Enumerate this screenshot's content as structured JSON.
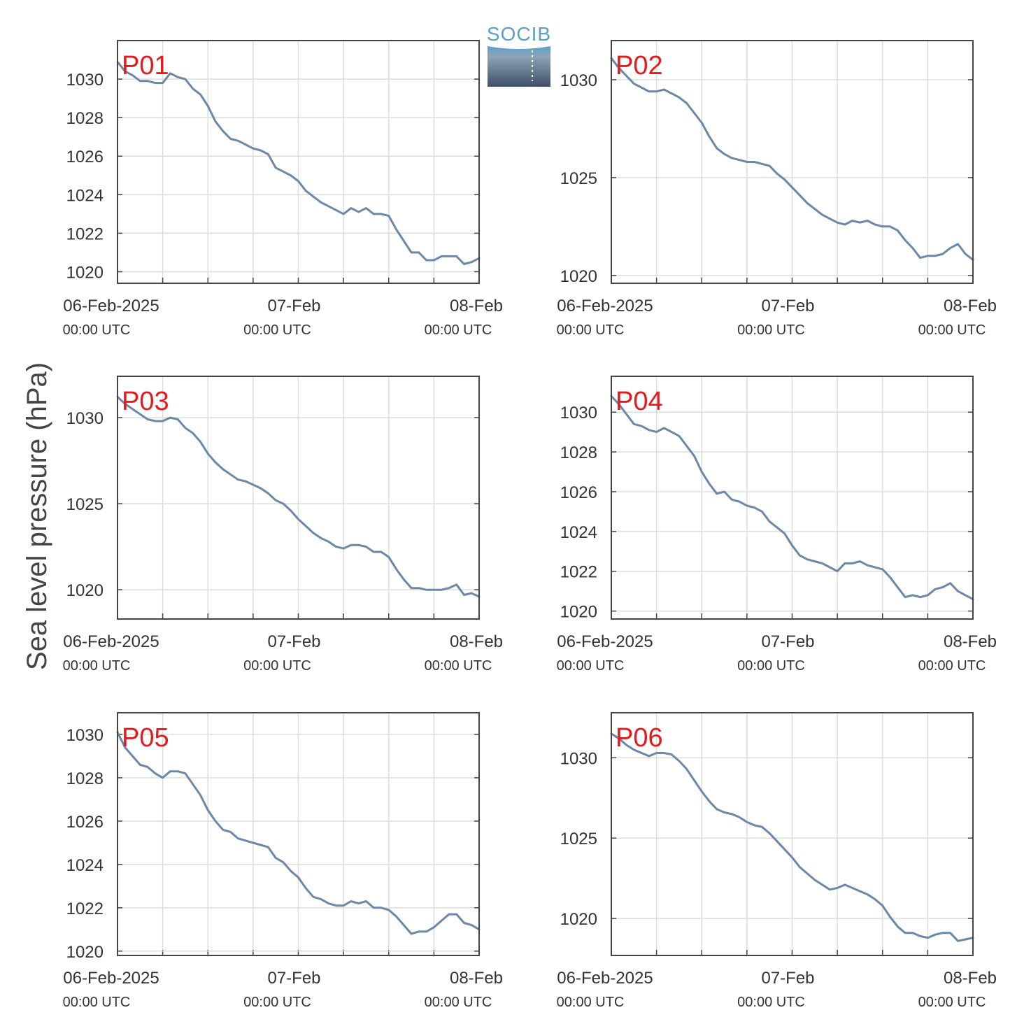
{
  "figure": {
    "ylabel": "Sea level pressure (hPa)",
    "logo_text": "SOCIB",
    "colors": {
      "line": "#6a88a8",
      "label": "#e41a1c",
      "grid": "#dddddd",
      "axis": "#444444"
    }
  },
  "chart_data": [
    {
      "type": "line",
      "title": "P01",
      "x_ticks": [
        "06-Feb-2025",
        "07-Feb",
        "08-Feb"
      ],
      "x_tick_sub": [
        "00:00 UTC",
        "00:00 UTC",
        "00:00 UTC"
      ],
      "x_hours": [
        0,
        24,
        48
      ],
      "xlim": [
        0,
        48
      ],
      "ylim": [
        1019.4,
        1032.0
      ],
      "y_ticks": [
        1020,
        1022,
        1024,
        1026,
        1028,
        1030
      ],
      "grid": true,
      "x": [
        0,
        1,
        2,
        3,
        4,
        5,
        6,
        7,
        8,
        9,
        10,
        11,
        12,
        13,
        14,
        15,
        16,
        17,
        18,
        19,
        20,
        21,
        22,
        23,
        24,
        25,
        26,
        27,
        28,
        29,
        30,
        31,
        32,
        33,
        34,
        35,
        36,
        37,
        38,
        39,
        40,
        41,
        42,
        43,
        44,
        45,
        46,
        47,
        48
      ],
      "y": [
        1030.9,
        1030.4,
        1030.2,
        1029.9,
        1029.9,
        1029.8,
        1029.8,
        1030.3,
        1030.1,
        1030.0,
        1029.5,
        1029.2,
        1028.6,
        1027.8,
        1027.3,
        1026.9,
        1026.8,
        1026.6,
        1026.4,
        1026.3,
        1026.1,
        1025.4,
        1025.2,
        1025.0,
        1024.7,
        1024.2,
        1023.9,
        1023.6,
        1023.4,
        1023.2,
        1023.0,
        1023.3,
        1023.1,
        1023.3,
        1023.0,
        1023.0,
        1022.9,
        1022.2,
        1021.6,
        1021.0,
        1021.0,
        1020.6,
        1020.6,
        1020.8,
        1020.8,
        1020.8,
        1020.4,
        1020.5,
        1020.7
      ]
    },
    {
      "type": "line",
      "title": "P02",
      "x_ticks": [
        "06-Feb-2025",
        "07-Feb",
        "08-Feb"
      ],
      "x_tick_sub": [
        "00:00 UTC",
        "00:00 UTC",
        "00:00 UTC"
      ],
      "x_hours": [
        0,
        24,
        48
      ],
      "xlim": [
        0,
        48
      ],
      "ylim": [
        1019.6,
        1032.0
      ],
      "y_ticks": [
        1020,
        1025,
        1030
      ],
      "grid": true,
      "x": [
        0,
        1,
        2,
        3,
        4,
        5,
        6,
        7,
        8,
        9,
        10,
        11,
        12,
        13,
        14,
        15,
        16,
        17,
        18,
        19,
        20,
        21,
        22,
        23,
        24,
        25,
        26,
        27,
        28,
        29,
        30,
        31,
        32,
        33,
        34,
        35,
        36,
        37,
        38,
        39,
        40,
        41,
        42,
        43,
        44,
        45,
        46,
        47,
        48
      ],
      "y": [
        1031.1,
        1030.6,
        1030.2,
        1029.8,
        1029.6,
        1029.4,
        1029.4,
        1029.5,
        1029.3,
        1029.1,
        1028.8,
        1028.3,
        1027.8,
        1027.1,
        1026.5,
        1026.2,
        1026.0,
        1025.9,
        1025.8,
        1025.8,
        1025.7,
        1025.6,
        1025.2,
        1024.9,
        1024.5,
        1024.1,
        1023.7,
        1023.4,
        1023.1,
        1022.9,
        1022.7,
        1022.6,
        1022.8,
        1022.7,
        1022.8,
        1022.6,
        1022.5,
        1022.5,
        1022.3,
        1021.8,
        1021.4,
        1020.9,
        1021.0,
        1021.0,
        1021.1,
        1021.4,
        1021.6,
        1021.1,
        1020.8
      ]
    },
    {
      "type": "line",
      "title": "P03",
      "x_ticks": [
        "06-Feb-2025",
        "07-Feb",
        "08-Feb"
      ],
      "x_tick_sub": [
        "00:00 UTC",
        "00:00 UTC",
        "00:00 UTC"
      ],
      "x_hours": [
        0,
        24,
        48
      ],
      "xlim": [
        0,
        48
      ],
      "ylim": [
        1018.3,
        1032.4
      ],
      "y_ticks": [
        1020,
        1025,
        1030
      ],
      "grid": true,
      "x": [
        0,
        1,
        2,
        3,
        4,
        5,
        6,
        7,
        8,
        9,
        10,
        11,
        12,
        13,
        14,
        15,
        16,
        17,
        18,
        19,
        20,
        21,
        22,
        23,
        24,
        25,
        26,
        27,
        28,
        29,
        30,
        31,
        32,
        33,
        34,
        35,
        36,
        37,
        38,
        39,
        40,
        41,
        42,
        43,
        44,
        45,
        46,
        47,
        48
      ],
      "y": [
        1031.2,
        1030.8,
        1030.5,
        1030.2,
        1029.9,
        1029.8,
        1029.8,
        1030.0,
        1029.9,
        1029.4,
        1029.1,
        1028.6,
        1027.9,
        1027.4,
        1027.0,
        1026.7,
        1026.4,
        1026.3,
        1026.1,
        1025.9,
        1025.6,
        1025.2,
        1025.0,
        1024.6,
        1024.1,
        1023.7,
        1023.3,
        1023.0,
        1022.8,
        1022.5,
        1022.4,
        1022.6,
        1022.6,
        1022.5,
        1022.2,
        1022.2,
        1021.9,
        1021.2,
        1020.6,
        1020.1,
        1020.1,
        1020.0,
        1020.0,
        1020.0,
        1020.1,
        1020.3,
        1019.7,
        1019.8,
        1019.6
      ]
    },
    {
      "type": "line",
      "title": "P04",
      "x_ticks": [
        "06-Feb-2025",
        "07-Feb",
        "08-Feb"
      ],
      "x_tick_sub": [
        "00:00 UTC",
        "00:00 UTC",
        "00:00 UTC"
      ],
      "x_hours": [
        0,
        24,
        48
      ],
      "xlim": [
        0,
        48
      ],
      "ylim": [
        1019.6,
        1031.8
      ],
      "y_ticks": [
        1020,
        1022,
        1024,
        1026,
        1028,
        1030
      ],
      "grid": true,
      "x": [
        0,
        1,
        2,
        3,
        4,
        5,
        6,
        7,
        8,
        9,
        10,
        11,
        12,
        13,
        14,
        15,
        16,
        17,
        18,
        19,
        20,
        21,
        22,
        23,
        24,
        25,
        26,
        27,
        28,
        29,
        30,
        31,
        32,
        33,
        34,
        35,
        36,
        37,
        38,
        39,
        40,
        41,
        42,
        43,
        44,
        45,
        46,
        47,
        48
      ],
      "y": [
        1030.8,
        1030.4,
        1029.9,
        1029.4,
        1029.3,
        1029.1,
        1029.0,
        1029.2,
        1029.0,
        1028.8,
        1028.3,
        1027.8,
        1027.0,
        1026.4,
        1025.9,
        1026.0,
        1025.6,
        1025.5,
        1025.3,
        1025.2,
        1025.0,
        1024.5,
        1024.2,
        1023.9,
        1023.3,
        1022.8,
        1022.6,
        1022.5,
        1022.4,
        1022.2,
        1022.0,
        1022.4,
        1022.4,
        1022.5,
        1022.3,
        1022.2,
        1022.1,
        1021.7,
        1021.2,
        1020.7,
        1020.8,
        1020.7,
        1020.8,
        1021.1,
        1021.2,
        1021.4,
        1021.0,
        1020.8,
        1020.6
      ]
    },
    {
      "type": "line",
      "title": "P05",
      "x_ticks": [
        "06-Feb-2025",
        "07-Feb",
        "08-Feb"
      ],
      "x_tick_sub": [
        "00:00 UTC",
        "00:00 UTC",
        "00:00 UTC"
      ],
      "x_hours": [
        0,
        24,
        48
      ],
      "xlim": [
        0,
        48
      ],
      "ylim": [
        1019.8,
        1031.0
      ],
      "y_ticks": [
        1020,
        1022,
        1024,
        1026,
        1028,
        1030
      ],
      "grid": true,
      "x": [
        0,
        1,
        2,
        3,
        4,
        5,
        6,
        7,
        8,
        9,
        10,
        11,
        12,
        13,
        14,
        15,
        16,
        17,
        18,
        19,
        20,
        21,
        22,
        23,
        24,
        25,
        26,
        27,
        28,
        29,
        30,
        31,
        32,
        33,
        34,
        35,
        36,
        37,
        38,
        39,
        40,
        41,
        42,
        43,
        44,
        45,
        46,
        47,
        48
      ],
      "y": [
        1030.1,
        1029.4,
        1029.0,
        1028.6,
        1028.5,
        1028.2,
        1028.0,
        1028.3,
        1028.3,
        1028.2,
        1027.7,
        1027.2,
        1026.5,
        1026.0,
        1025.6,
        1025.5,
        1025.2,
        1025.1,
        1025.0,
        1024.9,
        1024.8,
        1024.3,
        1024.1,
        1023.7,
        1023.4,
        1022.9,
        1022.5,
        1022.4,
        1022.2,
        1022.1,
        1022.1,
        1022.3,
        1022.2,
        1022.3,
        1022.0,
        1022.0,
        1021.9,
        1021.6,
        1021.2,
        1020.8,
        1020.9,
        1020.9,
        1021.1,
        1021.4,
        1021.7,
        1021.7,
        1021.3,
        1021.2,
        1021.0
      ]
    },
    {
      "type": "line",
      "title": "P06",
      "x_ticks": [
        "06-Feb-2025",
        "07-Feb",
        "08-Feb"
      ],
      "x_tick_sub": [
        "00:00 UTC",
        "00:00 UTC",
        "00:00 UTC"
      ],
      "x_hours": [
        0,
        24,
        48
      ],
      "xlim": [
        0,
        48
      ],
      "ylim": [
        1017.7,
        1032.8
      ],
      "y_ticks": [
        1020,
        1025,
        1030
      ],
      "grid": true,
      "x": [
        0,
        1,
        2,
        3,
        4,
        5,
        6,
        7,
        8,
        9,
        10,
        11,
        12,
        13,
        14,
        15,
        16,
        17,
        18,
        19,
        20,
        21,
        22,
        23,
        24,
        25,
        26,
        27,
        28,
        29,
        30,
        31,
        32,
        33,
        34,
        35,
        36,
        37,
        38,
        39,
        40,
        41,
        42,
        43,
        44,
        45,
        46,
        47,
        48
      ],
      "y": [
        1031.5,
        1031.2,
        1030.8,
        1030.5,
        1030.3,
        1030.1,
        1030.3,
        1030.3,
        1030.2,
        1029.8,
        1029.3,
        1028.6,
        1027.9,
        1027.3,
        1026.8,
        1026.6,
        1026.5,
        1026.3,
        1026.0,
        1025.8,
        1025.7,
        1025.3,
        1024.8,
        1024.3,
        1023.8,
        1023.2,
        1022.8,
        1022.4,
        1022.1,
        1021.8,
        1021.9,
        1022.1,
        1021.9,
        1021.7,
        1021.5,
        1021.2,
        1020.8,
        1020.1,
        1019.5,
        1019.1,
        1019.1,
        1018.9,
        1018.8,
        1019.0,
        1019.1,
        1019.1,
        1018.6,
        1018.7,
        1018.8
      ]
    }
  ]
}
